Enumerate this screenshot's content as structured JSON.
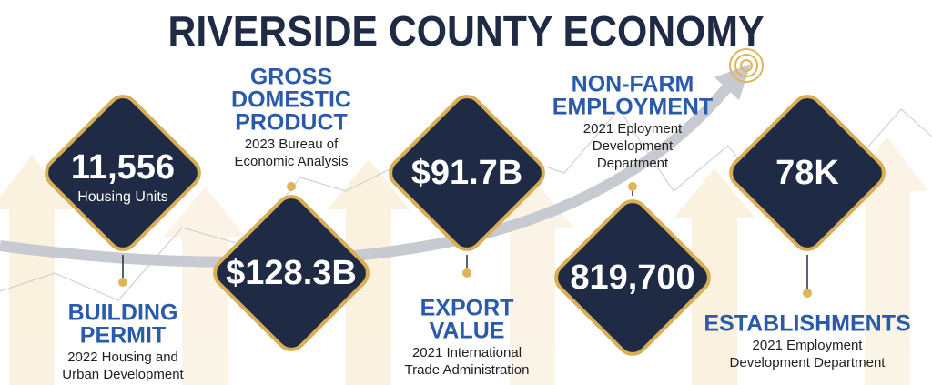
{
  "title": "RIVERSIDE COUNTY ECONOMY",
  "items": [
    {
      "value": "11,556",
      "unit": "Housing Units",
      "heading": [
        "BUILDING",
        "PERMIT"
      ],
      "source": [
        "2022 Housing and",
        "Urban Development"
      ]
    },
    {
      "value": "$128.3B",
      "heading": [
        "GROSS",
        "DOMESTIC",
        "PRODUCT"
      ],
      "source": [
        "2023 Bureau of",
        "Economic Analysis"
      ]
    },
    {
      "value": "$91.7B",
      "heading": [
        "EXPORT",
        "VALUE"
      ],
      "source": [
        "2021 International",
        "Trade Administration"
      ]
    },
    {
      "value": "819,700",
      "heading": [
        "NON-FARM",
        "EMPLOYMENT"
      ],
      "source": [
        "2021 Eployment",
        "Development",
        "Department"
      ]
    },
    {
      "value": "78K",
      "heading": [
        "ESTABLISHMENTS"
      ],
      "source": [
        "2021 Employment",
        "Development Department"
      ]
    }
  ]
}
